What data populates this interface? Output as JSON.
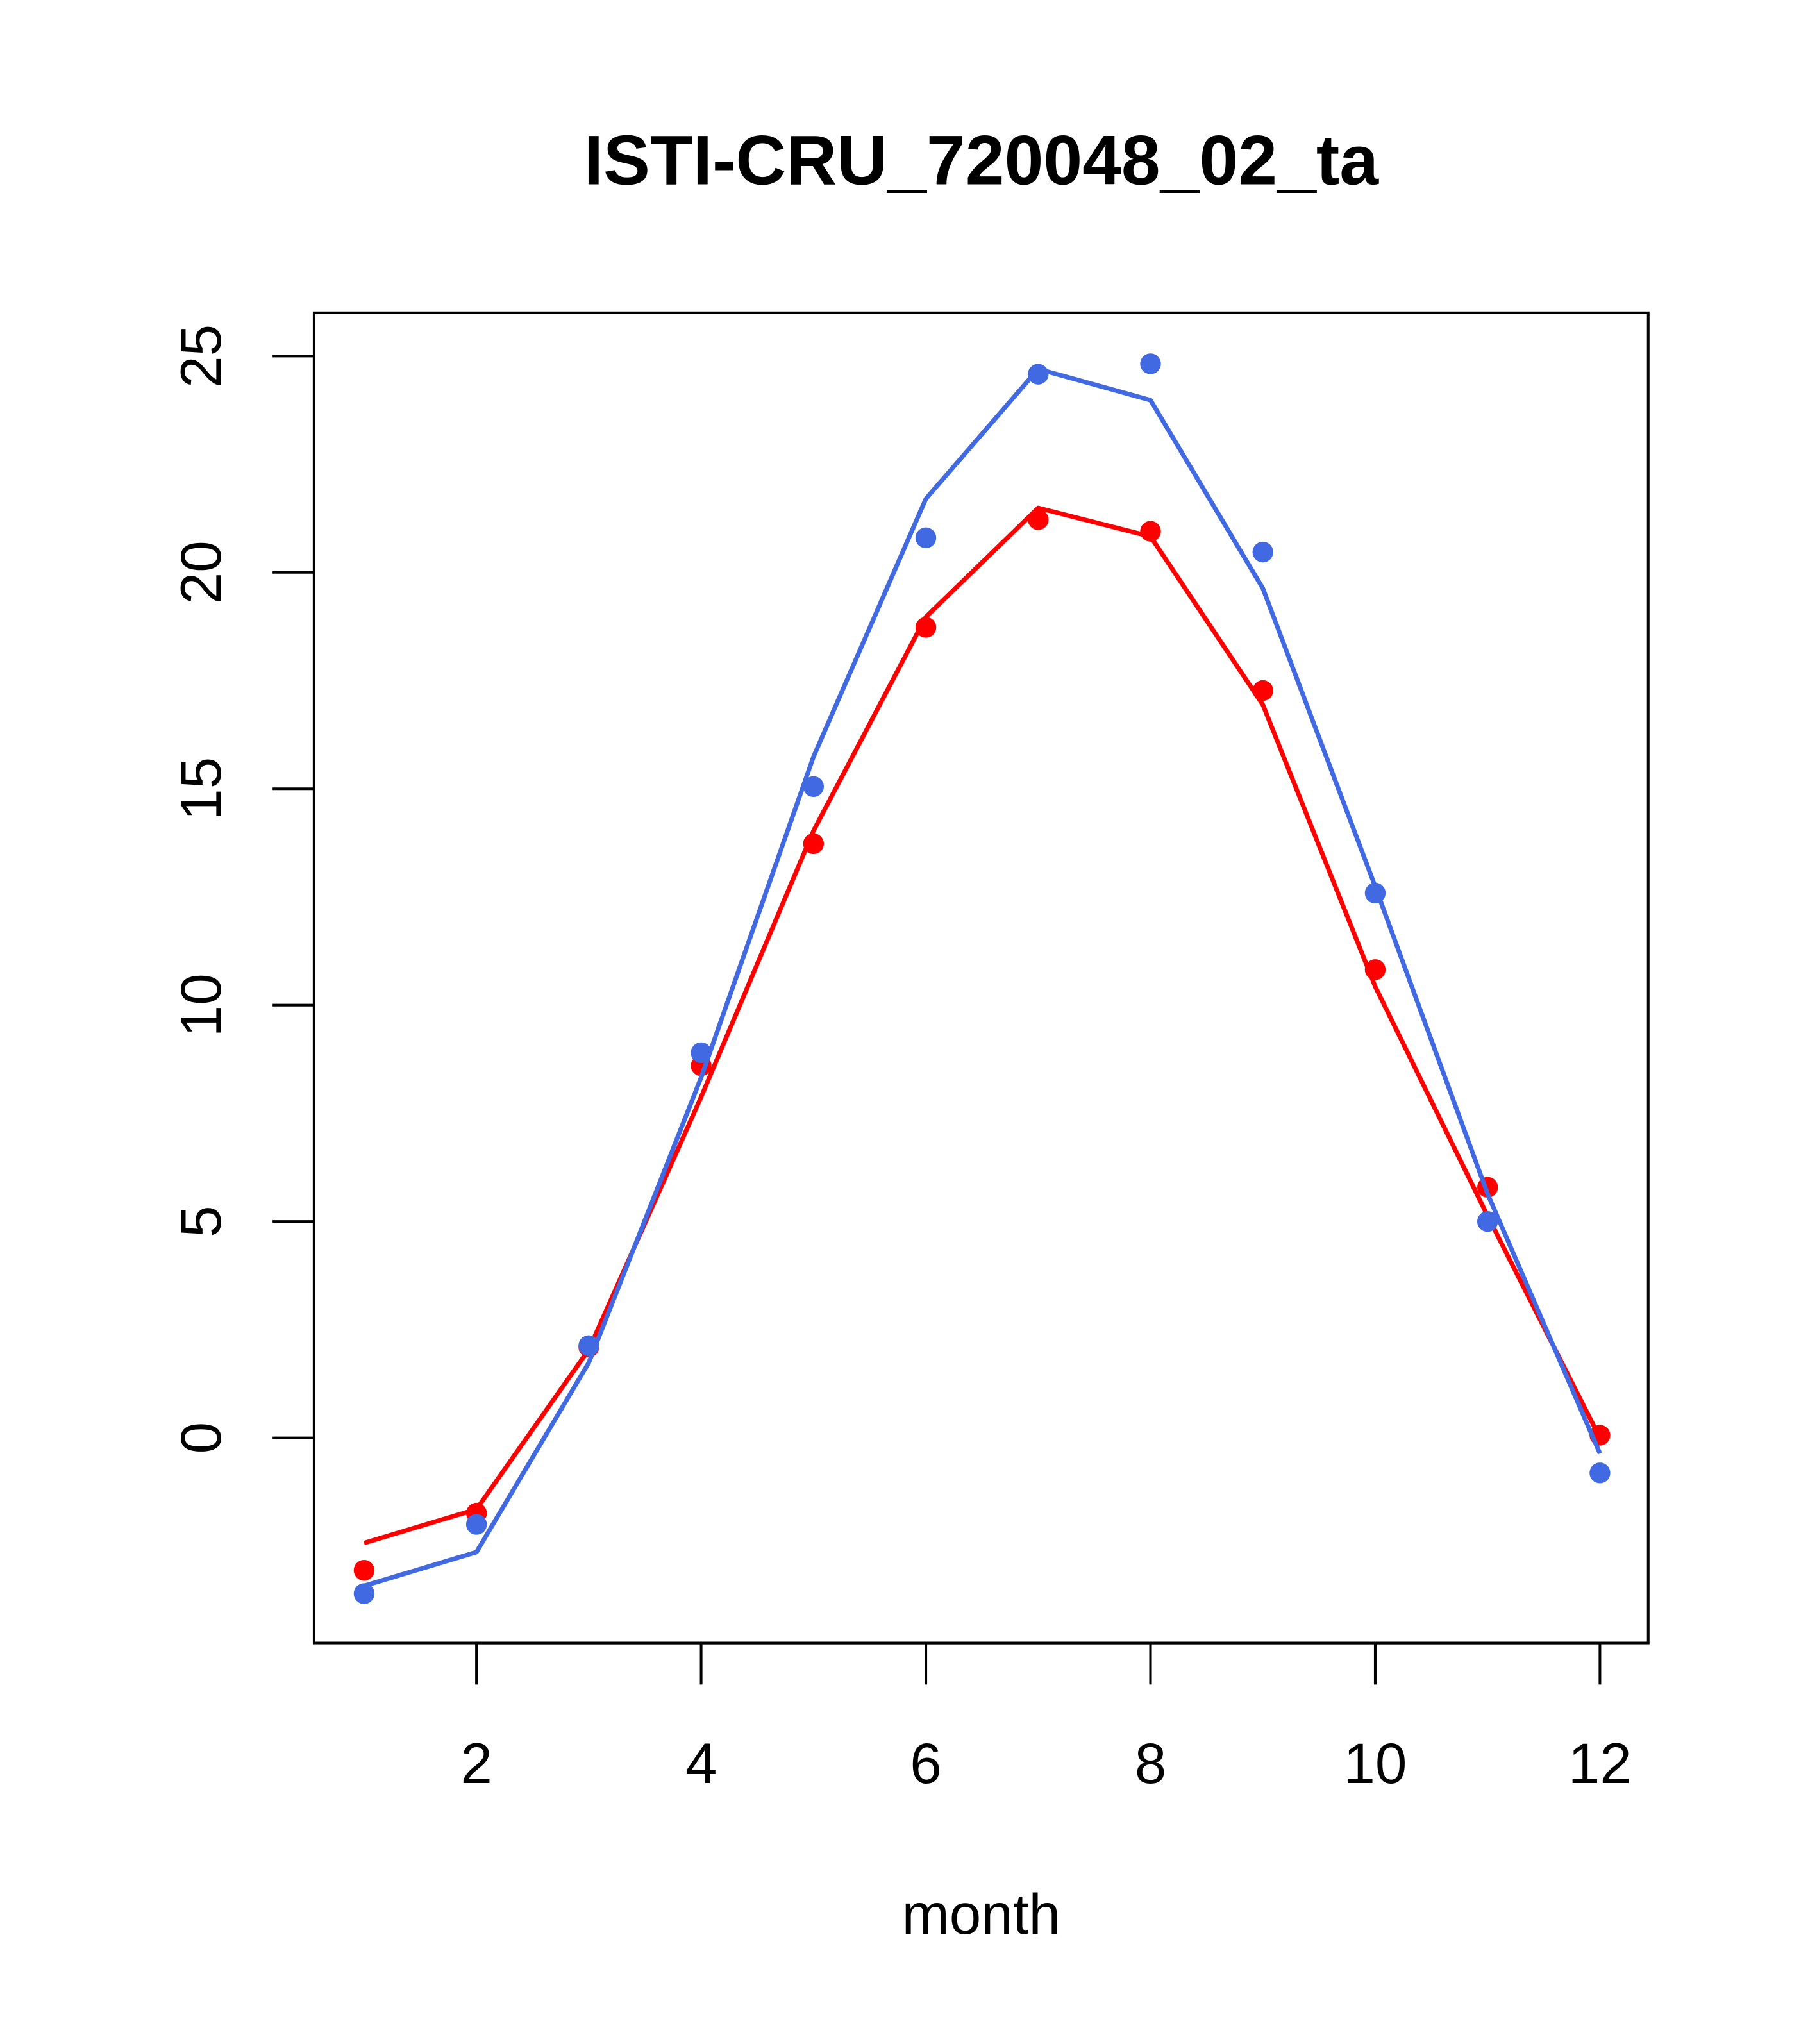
{
  "chart_data": {
    "type": "line",
    "title": "ISTI-CRU_720048_02_ta",
    "xlabel": "month",
    "ylabel": "",
    "xlim": [
      0.555,
      12.43
    ],
    "ylim": [
      -4.74,
      26.0
    ],
    "x_ticks": [
      2,
      4,
      6,
      8,
      10,
      12
    ],
    "x_tick_labels": [
      "2",
      "4",
      "6",
      "8",
      "10",
      "12"
    ],
    "y_ticks": [
      0,
      5,
      10,
      15,
      20,
      25
    ],
    "y_tick_labels": [
      "0",
      "5",
      "10",
      "15",
      "20",
      "25"
    ],
    "grid": false,
    "x": [
      1,
      2,
      3,
      4,
      5,
      6,
      7,
      8,
      9,
      10,
      11,
      12
    ],
    "series": [
      {
        "name": "red-line",
        "kind": "line",
        "color": "#ff0000",
        "values": [
          -2.43,
          -1.65,
          2.04,
          7.88,
          14.03,
          18.97,
          21.49,
          20.83,
          16.94,
          10.43,
          5.13,
          0.0
        ]
      },
      {
        "name": "red-points",
        "kind": "points",
        "color": "#ff0000",
        "values": [
          -3.06,
          -1.74,
          2.1,
          8.6,
          13.73,
          18.73,
          21.22,
          20.95,
          17.27,
          10.82,
          5.79,
          0.06
        ]
      },
      {
        "name": "blue-line",
        "kind": "line",
        "color": "#4169e1",
        "values": [
          -3.42,
          -2.64,
          1.74,
          8.33,
          15.74,
          21.7,
          24.7,
          23.98,
          19.63,
          12.74,
          5.64,
          -0.36
        ]
      },
      {
        "name": "blue-points",
        "kind": "points",
        "color": "#4169e1",
        "values": [
          -3.6,
          -2.0,
          2.13,
          8.9,
          15.05,
          20.8,
          24.58,
          24.82,
          20.47,
          12.59,
          5.0,
          -0.81
        ]
      }
    ]
  }
}
